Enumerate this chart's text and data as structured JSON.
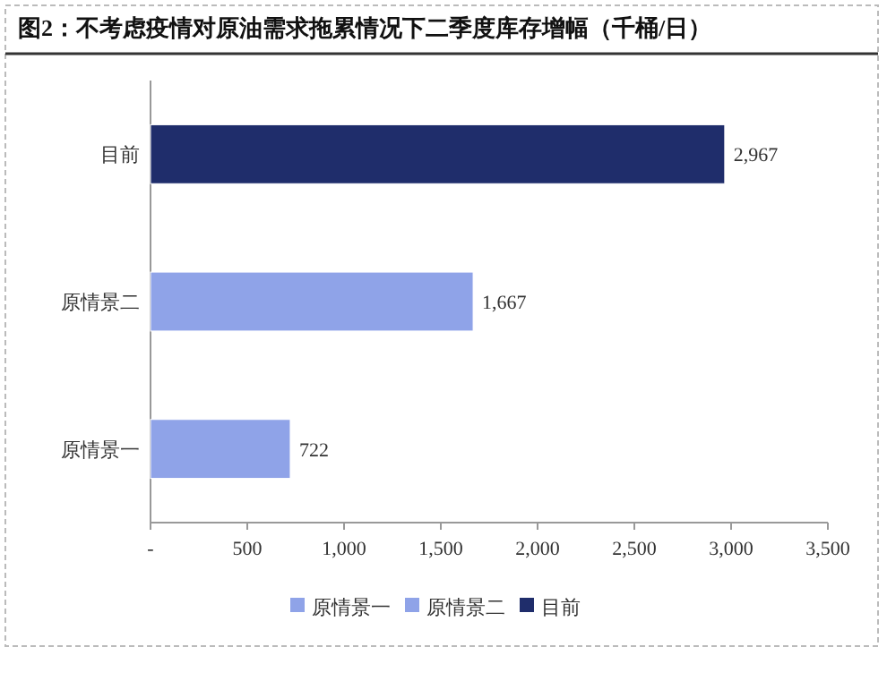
{
  "chart_data": {
    "type": "bar",
    "orientation": "horizontal",
    "title": "图2：不考虑疫情对原油需求拖累情况下二季度库存增幅（千桶/日）",
    "categories": [
      "目前",
      "原情景二",
      "原情景一"
    ],
    "series": [
      {
        "name": "原情景一",
        "color": "#8fa3e8",
        "values": [
          null,
          null,
          722
        ],
        "value_labels": [
          null,
          null,
          "722"
        ]
      },
      {
        "name": "原情景二",
        "color": "#8fa3e8",
        "values": [
          null,
          1667,
          null
        ],
        "value_labels": [
          null,
          "1,667",
          null
        ]
      },
      {
        "name": "目前",
        "color": "#1f2d6b",
        "values": [
          2967,
          null,
          null
        ],
        "value_labels": [
          "2,967",
          null,
          null
        ]
      }
    ],
    "xlim": [
      0,
      3500
    ],
    "xticks": [
      {
        "value": 0,
        "label": "-"
      },
      {
        "value": 500,
        "label": "500"
      },
      {
        "value": 1000,
        "label": "1,000"
      },
      {
        "value": 1500,
        "label": "1,500"
      },
      {
        "value": 2000,
        "label": "2,000"
      },
      {
        "value": 2500,
        "label": "2,500"
      },
      {
        "value": 3000,
        "label": "3,000"
      },
      {
        "value": 3500,
        "label": "3,500"
      }
    ],
    "legend": "bottom"
  }
}
